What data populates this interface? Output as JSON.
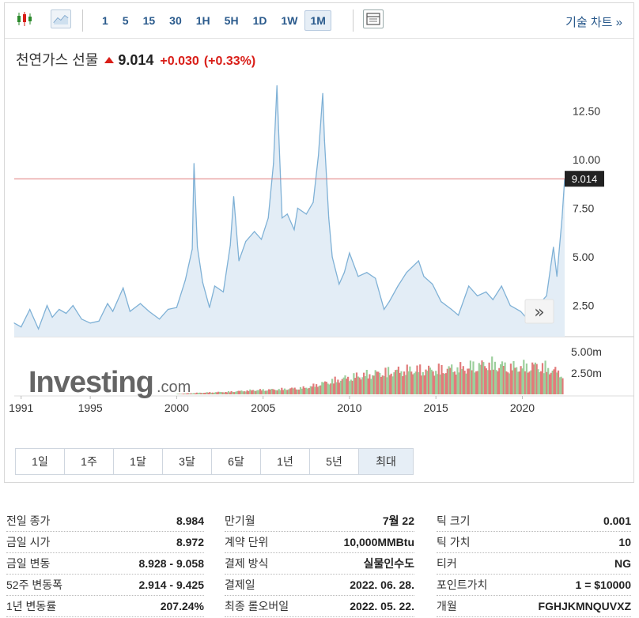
{
  "toolbar": {
    "intervals": [
      "1",
      "5",
      "15",
      "30",
      "1H",
      "5H",
      "1D",
      "1W",
      "1M"
    ],
    "active_interval": "1M",
    "tech_chart_label": "기술 차트 »"
  },
  "instrument": {
    "name": "천연가스 선물",
    "price": "9.014",
    "change": "+0.030",
    "change_pct": "(+0.33%)"
  },
  "watermark": {
    "brand": "Investing",
    "suffix": ".com"
  },
  "colors": {
    "up": "#d91e18",
    "line": "#7fb1d6",
    "area": "#e3edf6",
    "ref_line": "#e07b7b",
    "vol_up": "#9ccf9c",
    "vol_down": "#e27b7b"
  },
  "chart_data": {
    "type": "area",
    "title": "천연가스 선물",
    "price_axis": {
      "ticks": [
        "12.50",
        "10.00",
        "7.50",
        "5.00",
        "2.50"
      ],
      "ylim": [
        0.9,
        14.1
      ]
    },
    "volume_axis": {
      "ticks": [
        "5.00m",
        "2.50m"
      ],
      "ylim": [
        0,
        6.0
      ]
    },
    "x_ticks": [
      "1991",
      "1995",
      "2000",
      "2005",
      "2010",
      "2015",
      "2020"
    ],
    "xlim": [
      1990.6,
      2022.45
    ],
    "last_price_label": "9.014",
    "last_price": 9.014,
    "series": [
      {
        "name": "price",
        "x": [
          1990.6,
          1991.0,
          1991.5,
          1992.0,
          1992.5,
          1992.8,
          1993.2,
          1993.6,
          1994.0,
          1994.5,
          1995.0,
          1995.5,
          1996.0,
          1996.3,
          1996.9,
          1997.3,
          1997.9,
          1998.4,
          1999.0,
          1999.5,
          2000.0,
          2000.5,
          2000.9,
          2001.0,
          2001.2,
          2001.5,
          2001.9,
          2002.2,
          2002.7,
          2003.1,
          2003.3,
          2003.6,
          2004.0,
          2004.5,
          2004.9,
          2005.3,
          2005.6,
          2005.8,
          2005.9,
          2006.1,
          2006.4,
          2006.8,
          2007.0,
          2007.5,
          2007.9,
          2008.2,
          2008.45,
          2008.55,
          2008.8,
          2009.0,
          2009.4,
          2009.7,
          2010.0,
          2010.5,
          2011.0,
          2011.5,
          2012.0,
          2012.3,
          2012.8,
          2013.3,
          2014.0,
          2014.3,
          2014.8,
          2015.3,
          2015.9,
          2016.3,
          2016.9,
          2017.4,
          2017.9,
          2018.3,
          2018.8,
          2019.3,
          2019.9,
          2020.3,
          2020.7,
          2021.0,
          2021.4,
          2021.8,
          2022.0,
          2022.3,
          2022.45
        ],
        "values": [
          1.6,
          1.4,
          2.3,
          1.3,
          2.5,
          1.9,
          2.3,
          2.1,
          2.5,
          1.8,
          1.6,
          1.7,
          2.6,
          2.2,
          3.4,
          2.2,
          2.6,
          2.2,
          1.8,
          2.3,
          2.4,
          3.8,
          5.4,
          9.8,
          5.5,
          3.7,
          2.4,
          3.5,
          3.2,
          5.6,
          8.1,
          4.8,
          5.8,
          6.3,
          5.9,
          7.0,
          9.8,
          13.8,
          11.5,
          7.0,
          7.2,
          6.4,
          7.5,
          7.2,
          7.8,
          10.2,
          13.4,
          11.0,
          7.0,
          5.0,
          3.6,
          4.2,
          5.2,
          4.0,
          4.2,
          3.9,
          2.3,
          2.7,
          3.5,
          4.2,
          4.8,
          4.0,
          3.6,
          2.7,
          2.3,
          2.0,
          3.5,
          3.0,
          3.2,
          2.8,
          3.5,
          2.5,
          2.2,
          1.8,
          2.5,
          2.6,
          3.0,
          5.5,
          4.0,
          7.0,
          9.014
        ]
      }
    ],
    "volume": {
      "x": [
        2000.0,
        2001.5,
        2003.0,
        2004.5,
        2006.0,
        2007.5,
        2009.0,
        2010.5,
        2012.0,
        2013.5,
        2015.0,
        2016.5,
        2018.0,
        2019.5,
        2021.0,
        2022.4
      ],
      "values": [
        0.05,
        0.2,
        0.3,
        0.5,
        0.6,
        0.8,
        1.6,
        2.2,
        2.6,
        2.9,
        2.9,
        3.1,
        3.6,
        3.2,
        3.4,
        2.4
      ]
    }
  },
  "range_buttons": [
    "1일",
    "1주",
    "1달",
    "3달",
    "6달",
    "1년",
    "5년",
    "최대"
  ],
  "info": {
    "col1": [
      {
        "label": "전일 종가",
        "value": "8.984"
      },
      {
        "label": "금일 시가",
        "value": "8.972"
      },
      {
        "label": "금일 변동",
        "value": "8.928 - 9.058"
      },
      {
        "label": "52주 변동폭",
        "value": "2.914 - 9.425"
      },
      {
        "label": "1년 변동률",
        "value": "207.24%"
      }
    ],
    "col2": [
      {
        "label": "만기월",
        "value": "7월 22"
      },
      {
        "label": "계약 단위",
        "value": "10,000MMBtu"
      },
      {
        "label": "결제 방식",
        "value": "실물인수도"
      },
      {
        "label": "결제일",
        "value": "2022. 06. 28."
      },
      {
        "label": "최종 롤오버일",
        "value": "2022. 05. 22."
      }
    ],
    "col3": [
      {
        "label": "틱 크기",
        "value": "0.001"
      },
      {
        "label": "틱 가치",
        "value": "10"
      },
      {
        "label": "티커",
        "value": "NG"
      },
      {
        "label": "포인트가치",
        "value": "1 = $10000"
      },
      {
        "label": "개월",
        "value": "FGHJKMNQUVXZ"
      }
    ]
  }
}
